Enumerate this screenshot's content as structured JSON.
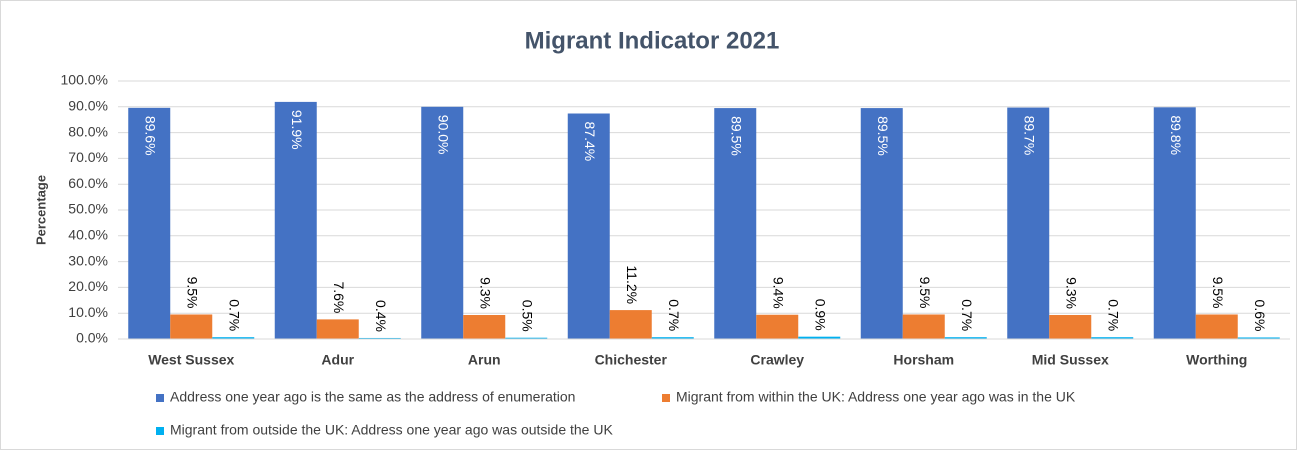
{
  "chart_data": {
    "type": "bar",
    "title": "Migrant Indicator 2021",
    "y_label": "Percentage",
    "categories": [
      "West Sussex",
      "Adur",
      "Arun",
      "Chichester",
      "Crawley",
      "Horsham",
      "Mid Sussex",
      "Worthing"
    ],
    "series": [
      {
        "name": "Address one year ago is the same as the address of enumeration",
        "color": "#4472c4",
        "values": [
          89.6,
          91.9,
          90.0,
          87.4,
          89.5,
          89.5,
          89.7,
          89.8
        ],
        "value_labels": [
          "89.6%",
          "91.9%",
          "90.0%",
          "87.4%",
          "89.5%",
          "89.5%",
          "89.7%",
          "89.8%"
        ]
      },
      {
        "name": "Migrant from within the UK: Address one year ago was in the UK",
        "color": "#ed7d31",
        "values": [
          9.5,
          7.6,
          9.3,
          11.2,
          9.4,
          9.5,
          9.3,
          9.5
        ],
        "value_labels": [
          "9.5%",
          "7.6%",
          "9.3%",
          "11.2%",
          "9.4%",
          "9.5%",
          "9.3%",
          "9.5%"
        ]
      },
      {
        "name": "Migrant from outside the UK: Address one year ago was outside the UK",
        "color": "#00b0f0",
        "values": [
          0.7,
          0.4,
          0.5,
          0.7,
          0.9,
          0.7,
          0.7,
          0.6
        ],
        "value_labels": [
          "0.7%",
          "0.4%",
          "0.5%",
          "0.7%",
          "0.9%",
          "0.7%",
          "0.7%",
          "0.6%"
        ]
      }
    ],
    "ylim": [
      0,
      100
    ],
    "yticks": [
      {
        "value": 0,
        "label": "0.0%"
      },
      {
        "value": 10,
        "label": "10.0%"
      },
      {
        "value": 20,
        "label": "20.0%"
      },
      {
        "value": 30,
        "label": "30.0%"
      },
      {
        "value": 40,
        "label": "40.0%"
      },
      {
        "value": 50,
        "label": "50.0%"
      },
      {
        "value": 60,
        "label": "60.0%"
      },
      {
        "value": 70,
        "label": "70.0%"
      },
      {
        "value": 80,
        "label": "80.0%"
      },
      {
        "value": 90,
        "label": "90.0%"
      },
      {
        "value": 100,
        "label": "100.0%"
      }
    ],
    "grid": true,
    "legend": "bottom"
  }
}
